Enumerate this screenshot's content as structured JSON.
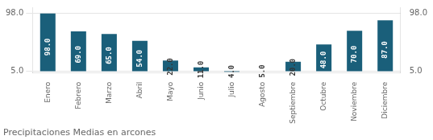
{
  "chart_data": {
    "type": "bar",
    "title": "Precipitaciones Medias en arcones",
    "categories": [
      "Enero",
      "Febrero",
      "Marzo",
      "Abril",
      "Mayo",
      "Junio",
      "Julio",
      "Agosto",
      "Septiembre",
      "Octubre",
      "Noviembre",
      "Diciembre"
    ],
    "values": [
      98.0,
      69.0,
      65.0,
      54.0,
      22.0,
      11.0,
      4.0,
      5.0,
      20.0,
      48.0,
      70.0,
      87.0
    ],
    "value_labels": [
      "98.0",
      "69.0",
      "65.0",
      "54.0",
      "22.0",
      "11.0",
      "4.0",
      "5.0",
      "20.0",
      "48.0",
      "70.0",
      "87.0"
    ],
    "bottom": 5.0,
    "color": "#1a5f7a",
    "ylim": [
      2.0,
      108.0
    ],
    "yticks": [
      {
        "value": 5.0,
        "label": "5.0"
      },
      {
        "value": 98.0,
        "label": "98.0"
      }
    ],
    "y2lim": [
      2.0,
      108.0
    ],
    "y2ticks": [
      {
        "value": 5.0,
        "label": "5.0"
      },
      {
        "value": 98.0,
        "label": "98.0"
      }
    ],
    "grid": true,
    "data_labels": true
  }
}
